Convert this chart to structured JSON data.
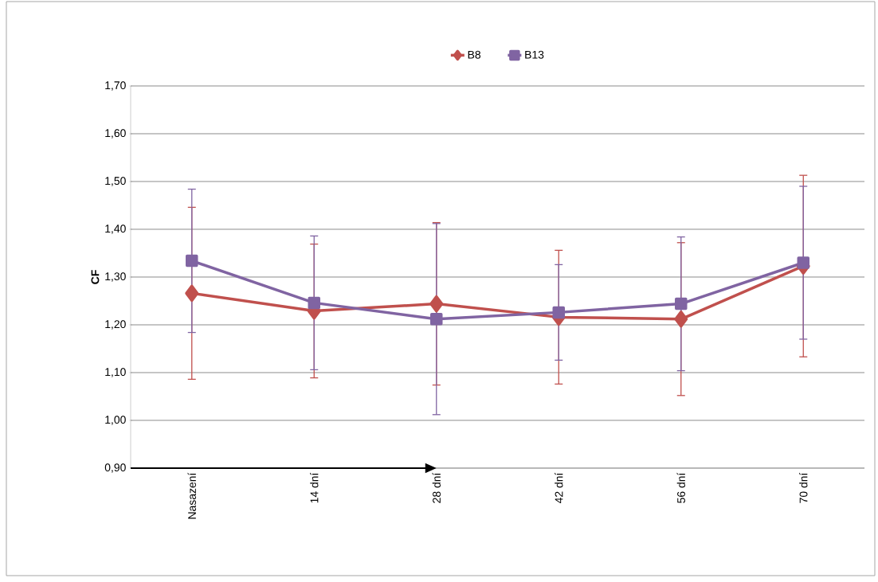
{
  "chart_data": {
    "type": "line",
    "ylabel": "CF",
    "categories": [
      "Nasazení",
      "14 dní",
      "28 dní",
      "42 dní",
      "56 dní",
      "70 dní"
    ],
    "series": [
      {
        "name": "B8",
        "color": "#c0504d",
        "marker": "diamond",
        "values": [
          1.266,
          1.229,
          1.244,
          1.216,
          1.212,
          1.323
        ],
        "errors": [
          0.18,
          0.14,
          0.17,
          0.14,
          0.16,
          0.19
        ]
      },
      {
        "name": "B13",
        "color": "#8064a2",
        "marker": "square",
        "values": [
          1.334,
          1.246,
          1.212,
          1.226,
          1.244,
          1.33
        ],
        "errors": [
          0.15,
          0.14,
          0.2,
          0.1,
          0.14,
          0.16
        ]
      }
    ],
    "ylim": [
      0.9,
      1.7
    ],
    "yticks": [
      {
        "value": 0.9,
        "label": "0,90"
      },
      {
        "value": 1.0,
        "label": "1,00"
      },
      {
        "value": 1.1,
        "label": "1,10"
      },
      {
        "value": 1.2,
        "label": "1,20"
      },
      {
        "value": 1.3,
        "label": "1,30"
      },
      {
        "value": 1.4,
        "label": "1,40"
      },
      {
        "value": 1.5,
        "label": "1,50"
      },
      {
        "value": 1.6,
        "label": "1,60"
      },
      {
        "value": 1.7,
        "label": "1,70"
      }
    ],
    "grid": "y",
    "legend": "top",
    "line_style": "solid"
  }
}
